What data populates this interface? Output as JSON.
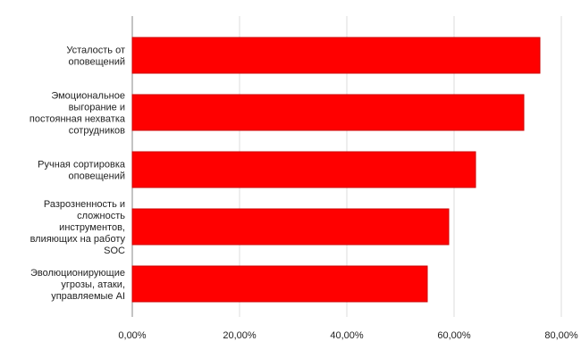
{
  "chart_data": {
    "type": "barh",
    "categories": [
      "Усталость от\nоповещений",
      "Эмоциональное\nвыгорание и\nпостоянная нехватка\nсотрудников",
      "Ручная сортировка\nоповещений",
      "Разрозненность и\nсложность\nинструментов,\nвлияющих на работу\nSOC",
      "Эволюционирующие\nугрозы, атаки,\nуправляемые AI"
    ],
    "values": [
      76,
      73,
      64,
      59,
      55
    ],
    "color": "#ff0000",
    "xlim": [
      0,
      80
    ],
    "xticks": [
      {
        "value": 0,
        "label": "0,00%"
      },
      {
        "value": 20,
        "label": "20,00%"
      },
      {
        "value": 40,
        "label": "40,00%"
      },
      {
        "value": 60,
        "label": "60,00%"
      },
      {
        "value": 80,
        "label": "80,00%"
      }
    ],
    "grid": true
  }
}
